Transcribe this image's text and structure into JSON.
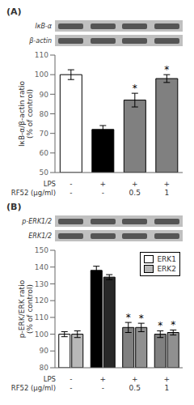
{
  "chart_data": [
    {
      "type": "bar",
      "title": "(A)",
      "annotations": [
        "IκB-α",
        "β-actin"
      ],
      "ylabel": "IκB-α/β-actin ratio\n(% of control)",
      "category_rows": [
        {
          "name": "LPS",
          "labels": [
            "-",
            "+",
            "+",
            "+"
          ]
        },
        {
          "name": "RF52 (μg/ml)",
          "labels": [
            "-",
            "-",
            "0.5",
            "1"
          ]
        }
      ],
      "values": [
        100,
        72,
        87,
        98
      ],
      "errors": [
        2.5,
        2.0,
        3.5,
        2.0
      ],
      "colors": [
        "white",
        "black",
        "#808080",
        "#808080"
      ],
      "significance": [
        null,
        null,
        "*",
        "*"
      ],
      "ylim": [
        50,
        110
      ],
      "yticks": [
        50,
        60,
        70,
        80,
        90,
        100,
        110
      ]
    },
    {
      "type": "bar",
      "title": "(B)",
      "annotations": [
        "p-ERK1/2",
        "ERK1/2"
      ],
      "ylabel": "p-ERK/ERK ratio\n(% of control)",
      "category_rows": [
        {
          "name": "LPS",
          "labels": [
            "-",
            "+",
            "+",
            "+"
          ]
        },
        {
          "name": "RF52 (μg/ml)",
          "labels": [
            "-",
            "-",
            "0.5",
            "1"
          ]
        }
      ],
      "series": [
        {
          "name": "ERK1",
          "values": [
            100,
            138,
            104,
            100
          ],
          "errors": [
            1.5,
            2.5,
            3.0,
            2.0
          ],
          "colors": [
            "white",
            "black",
            "#808080",
            "#808080"
          ],
          "significance": [
            null,
            null,
            "*",
            "*"
          ]
        },
        {
          "name": "ERK2",
          "values": [
            100,
            134,
            104,
            101
          ],
          "errors": [
            2.0,
            1.5,
            2.5,
            1.5
          ],
          "colors": [
            "#b8b8b8",
            "#282828",
            "#909090",
            "#909090"
          ],
          "significance": [
            null,
            null,
            "*",
            "*"
          ]
        }
      ],
      "ylim": [
        80,
        150
      ],
      "yticks": [
        80,
        90,
        100,
        110,
        120,
        130,
        140,
        150
      ],
      "legend": "upper right"
    }
  ]
}
